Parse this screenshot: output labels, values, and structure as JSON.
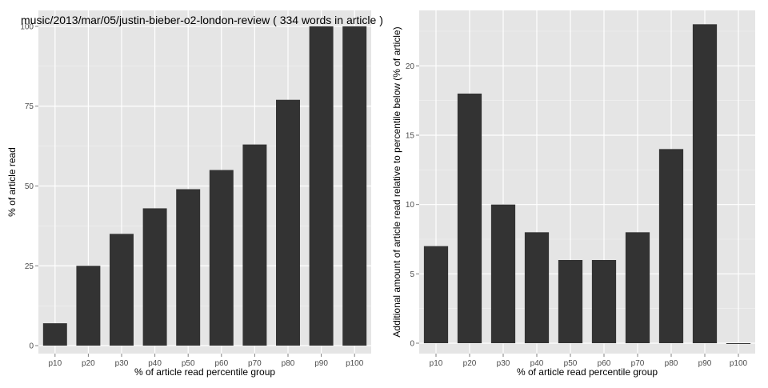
{
  "chart_data": [
    {
      "type": "bar",
      "title": "music/2013/mar/05/justin-bieber-o2-london-review ( 334 words in article )",
      "xlabel": "% of article read percentile group",
      "ylabel": "% of article read",
      "categories": [
        "p10",
        "p20",
        "p30",
        "p40",
        "p50",
        "p60",
        "p70",
        "p80",
        "p90",
        "p100"
      ],
      "values": [
        7,
        25,
        35,
        43,
        49,
        55,
        63,
        77,
        100,
        100
      ],
      "ylim": [
        -2.5,
        105
      ],
      "yticks": [
        0,
        25,
        50,
        75,
        100
      ],
      "grid": true,
      "colors": {
        "bar": "#333333",
        "panel": "#e5e5e5",
        "grid_major": "#ffffff",
        "grid_minor": "#f2f2f2"
      }
    },
    {
      "type": "bar",
      "title": "",
      "xlabel": "% of article read percentile group",
      "ylabel": "Additional amount of article read relative to percentile below (% of article)",
      "categories": [
        "p10",
        "p20",
        "p30",
        "p40",
        "p50",
        "p60",
        "p70",
        "p80",
        "p90",
        "p100"
      ],
      "values": [
        7,
        18,
        10,
        8,
        6,
        6,
        8,
        14,
        23,
        0
      ],
      "ylim": [
        -0.75,
        24
      ],
      "yticks": [
        0,
        5,
        10,
        15,
        20
      ],
      "grid": true,
      "colors": {
        "bar": "#333333",
        "panel": "#e5e5e5",
        "grid_major": "#ffffff",
        "grid_minor": "#f2f2f2"
      }
    }
  ]
}
